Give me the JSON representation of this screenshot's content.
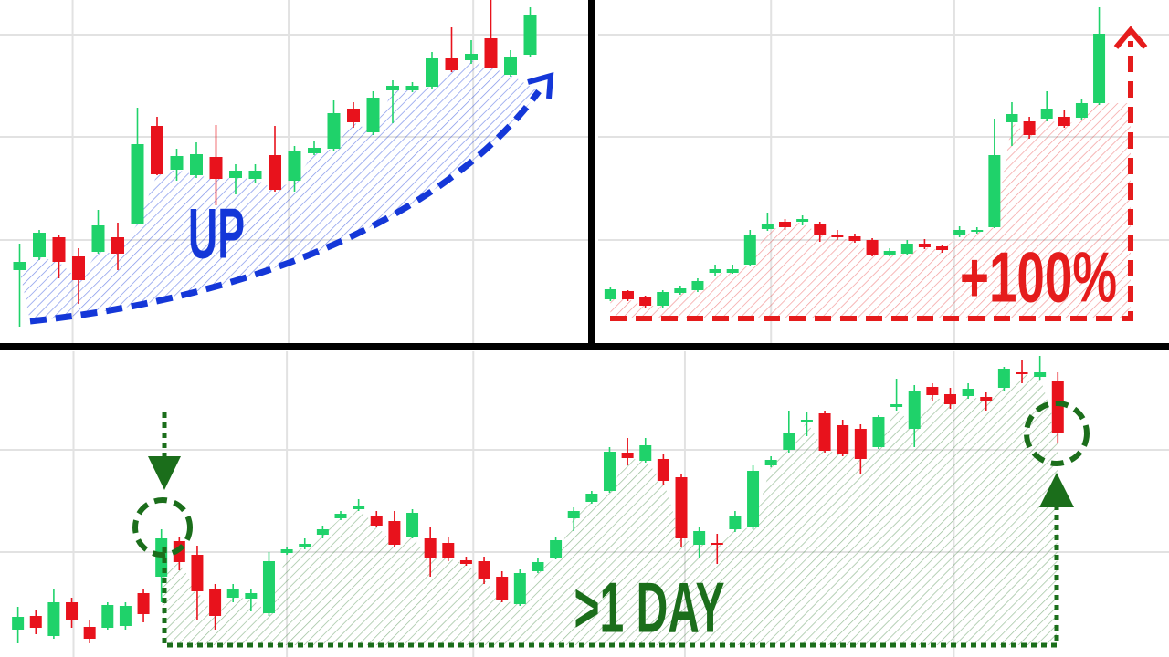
{
  "chart_data": [
    {
      "type": "candlestick",
      "annotation": "UP",
      "annotation_color": "#1437d8",
      "up_color": "#1fd26a",
      "down_color": "#e8121c",
      "grid": true,
      "xlim": [
        -1,
        29
      ],
      "xticks": [
        2.7,
        13.7,
        23.1
      ],
      "ylim": [
        0,
        378
      ],
      "yticks": [
        115,
        228,
        340
      ],
      "open": [
        82,
        96,
        118,
        97,
        102,
        118,
        133,
        240,
        192,
        186,
        206,
        183,
        182,
        208,
        180,
        210,
        215,
        259,
        233,
        279,
        279,
        283,
        314,
        312,
        336,
        296,
        318
      ],
      "close": [
        91,
        123,
        91,
        71,
        131,
        100,
        220,
        187,
        207,
        209,
        182,
        191,
        191,
        170,
        212,
        216,
        254,
        244,
        271,
        284,
        284,
        314,
        301,
        319,
        304,
        316,
        362
      ],
      "high": [
        111,
        126,
        120,
        106,
        148,
        134,
        260,
        250,
        215,
        222,
        241,
        198,
        198,
        240,
        218,
        223,
        268,
        266,
        278,
        290,
        288,
        321,
        348,
        334,
        378,
        323,
        370
      ],
      "low": [
        20,
        93,
        73,
        45,
        100,
        82,
        132,
        186,
        180,
        183,
        153,
        165,
        178,
        168,
        168,
        208,
        213,
        238,
        230,
        243,
        277,
        281,
        299,
        308,
        303,
        294,
        316
      ]
    },
    {
      "type": "candlestick",
      "annotation": "+100%",
      "annotation_color": "#e51c1c",
      "up_color": "#1fd26a",
      "down_color": "#e8121c",
      "grid": true,
      "xlim": [
        -0.7,
        32
      ],
      "xticks": [
        9.2,
        19.7
      ],
      "ylim": [
        0,
        378
      ],
      "yticks": [
        115,
        228,
        340
      ],
      "open": [
        50,
        59,
        52,
        43,
        57,
        60,
        79,
        79,
        88,
        127,
        135,
        135,
        133,
        121,
        119,
        115,
        99,
        100,
        111,
        108,
        120,
        124,
        129,
        244,
        245,
        248,
        250,
        249,
        265
      ],
      "close": [
        61,
        50,
        43,
        58,
        62,
        70,
        83,
        83,
        120,
        133,
        129,
        138,
        120,
        118,
        114,
        99,
        103,
        111,
        107,
        104,
        126,
        126,
        208,
        253,
        230,
        259,
        240,
        265,
        341
      ],
      "high": [
        63,
        60,
        54,
        60,
        65,
        73,
        88,
        88,
        126,
        145,
        138,
        142,
        135,
        126,
        122,
        117,
        106,
        115,
        116,
        110,
        130,
        129,
        248,
        266,
        250,
        278,
        258,
        270,
        370
      ],
      "low": [
        48,
        48,
        40,
        41,
        55,
        58,
        76,
        78,
        86,
        125,
        126,
        131,
        113,
        115,
        112,
        97,
        97,
        98,
        105,
        101,
        118,
        122,
        128,
        218,
        226,
        245,
        238,
        247,
        263
      ]
    },
    {
      "type": "candlestick",
      "annotation": ">1 DAY",
      "annotation_color": "#1b6e1b",
      "up_color": "#1fd26a",
      "down_color": "#e8121c",
      "grid": true,
      "xlim": [
        -1,
        64.2
      ],
      "xticks": [
        3.1,
        15.0,
        25.4,
        37.2,
        52.2
      ],
      "ylim": [
        0,
        335
      ],
      "yticks": [
        115,
        227
      ],
      "open": [
        30,
        45,
        23,
        60,
        33,
        32,
        34,
        70,
        88,
        127,
        112,
        74,
        65,
        64,
        48,
        114,
        120,
        134,
        152,
        162,
        155,
        149,
        132,
        130,
        125,
        106,
        105,
        88,
        58,
        94,
        109,
        152,
        170,
        182,
        224,
        215,
        217,
        197,
        123,
        125,
        140,
        142,
        210,
        227,
        258,
        267,
        254,
        250,
        230,
        274,
        250,
        296,
        288,
        286,
        285,
        295,
        312,
        307,
        303
      ],
      "close": [
        44,
        32,
        60,
        40,
        20,
        57,
        56,
        47,
        130,
        104,
        72,
        45,
        75,
        70,
        105,
        118,
        124,
        140,
        157,
        165,
        144,
        123,
        158,
        108,
        108,
        102,
        85,
        62,
        92,
        104,
        128,
        160,
        179,
        225,
        218,
        232,
        193,
        130,
        138,
        123,
        154,
        204,
        216,
        246,
        260,
        226,
        223,
        217,
        263,
        277,
        292,
        287,
        277,
        294,
        281,
        316,
        310,
        312,
        245
      ],
      "high": [
        55,
        52,
        75,
        65,
        40,
        60,
        60,
        75,
        140,
        132,
        122,
        80,
        80,
        75,
        115,
        120,
        130,
        144,
        160,
        173,
        160,
        160,
        162,
        142,
        132,
        110,
        110,
        94,
        96,
        108,
        132,
        164,
        182,
        230,
        240,
        240,
        222,
        200,
        142,
        135,
        160,
        210,
        220,
        270,
        268,
        270,
        260,
        255,
        265,
        305,
        298,
        300,
        295,
        300,
        290,
        318,
        325,
        330,
        312
      ],
      "low": [
        15,
        25,
        20,
        32,
        15,
        30,
        30,
        38,
        60,
        95,
        40,
        30,
        60,
        50,
        45,
        112,
        118,
        130,
        150,
        160,
        142,
        120,
        130,
        88,
        105,
        100,
        80,
        60,
        56,
        92,
        107,
        138,
        168,
        180,
        210,
        213,
        188,
        120,
        108,
        102,
        137,
        140,
        208,
        224,
        242,
        224,
        220,
        200,
        228,
        270,
        230,
        280,
        272,
        283,
        270,
        292,
        300,
        304,
        235
      ]
    }
  ]
}
